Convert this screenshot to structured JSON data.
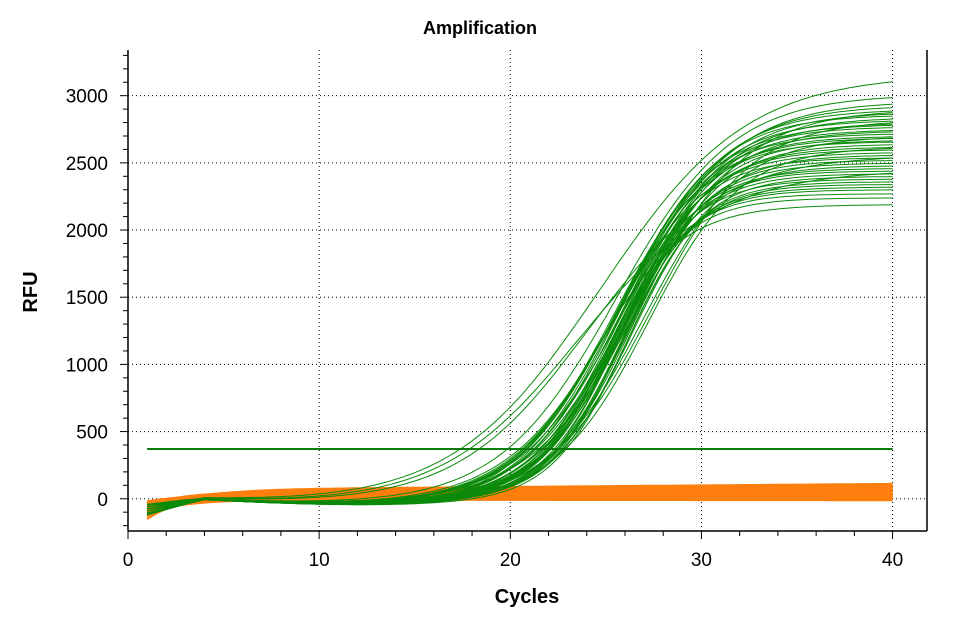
{
  "chart_data": {
    "type": "line",
    "title": "Amplification",
    "xlabel": "Cycles",
    "ylabel": "RFU",
    "xlim": [
      0,
      41.8
    ],
    "ylim": [
      -240,
      3340
    ],
    "x_ticks": [
      0,
      10,
      20,
      30,
      40
    ],
    "y_ticks": [
      0,
      500,
      1000,
      1500,
      2000,
      2500,
      3000
    ],
    "grid": true,
    "threshold": 370,
    "colors": {
      "amplified": "#0a8a0a",
      "baseline": "#ff7f0e",
      "threshold": "#0b7a0b"
    },
    "cycle_range": [
      1,
      40
    ],
    "series_groups": [
      {
        "color": "amplified",
        "description": "sigmoid amplification curves (plateau, midpoint cycle, slope)",
        "curves": [
          [
            3160,
            24.8,
            3.8
          ],
          [
            3010,
            25.6,
            3.0
          ],
          [
            2960,
            26.0,
            2.9
          ],
          [
            2930,
            25.9,
            2.8
          ],
          [
            2900,
            25.8,
            2.7
          ],
          [
            2880,
            26.1,
            2.7
          ],
          [
            2860,
            25.7,
            2.6
          ],
          [
            2840,
            26.2,
            2.6
          ],
          [
            2820,
            25.9,
            2.5
          ],
          [
            2800,
            26.3,
            2.5
          ],
          [
            2790,
            25.5,
            2.6
          ],
          [
            2770,
            26.0,
            2.4
          ],
          [
            2750,
            25.8,
            2.5
          ],
          [
            2740,
            26.4,
            2.4
          ],
          [
            2720,
            25.6,
            2.4
          ],
          [
            2700,
            26.1,
            2.3
          ],
          [
            2690,
            25.4,
            2.5
          ],
          [
            2670,
            26.2,
            2.3
          ],
          [
            2660,
            25.7,
            2.3
          ],
          [
            2640,
            26.5,
            2.2
          ],
          [
            2620,
            25.9,
            2.3
          ],
          [
            2600,
            26.0,
            2.2
          ],
          [
            2580,
            25.3,
            2.4
          ],
          [
            2560,
            26.3,
            2.2
          ],
          [
            2540,
            25.6,
            2.2
          ],
          [
            2520,
            26.1,
            2.1
          ],
          [
            2500,
            25.8,
            2.2
          ],
          [
            2480,
            26.4,
            2.1
          ],
          [
            2460,
            25.5,
            2.2
          ],
          [
            2440,
            26.0,
            2.0
          ],
          [
            2420,
            25.7,
            2.1
          ],
          [
            2400,
            26.2,
            2.0
          ],
          [
            2380,
            25.4,
            2.1
          ],
          [
            2360,
            25.9,
            2.0
          ],
          [
            2340,
            26.1,
            1.9
          ],
          [
            2320,
            25.6,
            2.0
          ],
          [
            2300,
            25.8,
            1.9
          ],
          [
            2270,
            25.5,
            1.9
          ],
          [
            2240,
            25.2,
            2.0
          ],
          [
            2190,
            24.4,
            2.3
          ],
          [
            2560,
            24.2,
            3.4
          ],
          [
            2450,
            23.8,
            3.6
          ],
          [
            2620,
            27.2,
            2.4
          ],
          [
            2700,
            27.0,
            2.5
          ],
          [
            2820,
            27.4,
            2.6
          ],
          [
            2900,
            26.8,
            2.8
          ]
        ]
      },
      {
        "color": "baseline",
        "description": "non-amplified baseline curves (final RFU at cycle 40, start RFU at cycle 1)",
        "curves": [
          [
            110,
            -120
          ],
          [
            100,
            -90
          ],
          [
            95,
            -60
          ],
          [
            90,
            -150
          ],
          [
            85,
            -40
          ],
          [
            80,
            -100
          ],
          [
            75,
            -70
          ],
          [
            70,
            -30
          ],
          [
            65,
            -130
          ],
          [
            60,
            -50
          ],
          [
            55,
            -80
          ],
          [
            50,
            -20
          ],
          [
            45,
            -110
          ],
          [
            40,
            -60
          ],
          [
            35,
            -90
          ],
          [
            30,
            -40
          ],
          [
            25,
            -70
          ],
          [
            20,
            -120
          ],
          [
            15,
            -30
          ],
          [
            10,
            -60
          ],
          [
            5,
            -80
          ],
          [
            0,
            -50
          ],
          [
            -5,
            -100
          ],
          [
            -10,
            -30
          ]
        ]
      }
    ]
  }
}
